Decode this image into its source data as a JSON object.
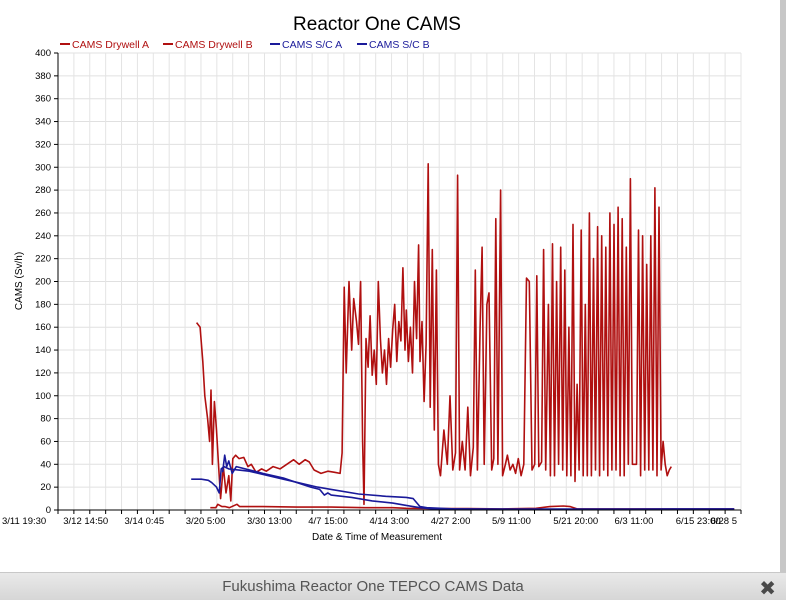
{
  "chart_data": {
    "type": "line",
    "title": "Reactor One CAMS",
    "xlabel": "Date & Time of Measurement",
    "ylabel": "CAMS (Sv/h)",
    "ylim": [
      0,
      400
    ],
    "xlim": [
      0,
      100
    ],
    "y_ticks": [
      0,
      20,
      40,
      60,
      80,
      100,
      120,
      140,
      160,
      180,
      200,
      220,
      240,
      260,
      280,
      300,
      320,
      340,
      360,
      380,
      400
    ],
    "x_tick_labels": [
      "3/11 19:30",
      "3/12 14:50",
      "3/14 0:45",
      "3/20 5:00",
      "3/30 13:00",
      "4/7 15:00",
      "4/14 3:00",
      "4/27 2:00",
      "5/9 11:00",
      "5/21 20:00",
      "6/3 11:00",
      "6/15 23:00",
      "6/28 5"
    ],
    "grid": true,
    "legend_position": "top",
    "series": [
      {
        "name": "CAMS Drywell A",
        "color": "#b01010",
        "points": [
          [
            22.3,
            2
          ],
          [
            23.1,
            2
          ],
          [
            23.4,
            5
          ],
          [
            24.0,
            3
          ],
          [
            24.5,
            3
          ],
          [
            25.1,
            2
          ],
          [
            26.2,
            5
          ],
          [
            26.6,
            3
          ],
          [
            30,
            3
          ],
          [
            35,
            2.5
          ],
          [
            40,
            2.5
          ],
          [
            45,
            2
          ],
          [
            49,
            2
          ],
          [
            51,
            1.5
          ],
          [
            55,
            1.2
          ],
          [
            60,
            1.2
          ],
          [
            65,
            1
          ],
          [
            70,
            1.5
          ],
          [
            72,
            3
          ],
          [
            74,
            3.5
          ],
          [
            75,
            3
          ],
          [
            76,
            1
          ],
          [
            80,
            1
          ],
          [
            90,
            1
          ],
          [
            99,
            1
          ]
        ]
      },
      {
        "name": "CAMS Drywell B",
        "color": "#b01010",
        "points": [
          [
            20.3,
            164
          ],
          [
            20.8,
            160
          ],
          [
            21.2,
            130
          ],
          [
            21.5,
            100
          ],
          [
            21.9,
            80
          ],
          [
            22.2,
            60
          ],
          [
            22.4,
            105
          ],
          [
            22.6,
            40
          ],
          [
            22.9,
            95
          ],
          [
            23.2,
            70
          ],
          [
            23.5,
            40
          ],
          [
            23.8,
            10
          ],
          [
            24.2,
            38
          ],
          [
            24.6,
            15
          ],
          [
            25.0,
            30
          ],
          [
            25.3,
            8
          ],
          [
            25.6,
            45
          ],
          [
            26.0,
            48
          ],
          [
            26.5,
            45
          ],
          [
            27.2,
            46
          ],
          [
            27.8,
            38
          ],
          [
            28.3,
            40
          ],
          [
            29.0,
            33
          ],
          [
            29.8,
            36
          ],
          [
            30.5,
            34
          ],
          [
            31.5,
            38
          ],
          [
            32.5,
            36
          ],
          [
            33.5,
            40
          ],
          [
            34.5,
            44
          ],
          [
            35.3,
            40
          ],
          [
            36.2,
            44
          ],
          [
            36.8,
            42
          ],
          [
            37.5,
            35
          ],
          [
            38.5,
            32
          ],
          [
            39.5,
            34
          ],
          [
            40.5,
            33
          ],
          [
            41.3,
            32
          ],
          [
            41.6,
            50
          ],
          [
            41.9,
            195
          ],
          [
            42.2,
            120
          ],
          [
            42.6,
            200
          ],
          [
            43.0,
            140
          ],
          [
            43.3,
            185
          ],
          [
            43.7,
            165
          ],
          [
            44.0,
            145
          ],
          [
            44.3,
            200
          ],
          [
            44.6,
            60
          ],
          [
            44.8,
            5
          ],
          [
            45.1,
            150
          ],
          [
            45.4,
            125
          ],
          [
            45.7,
            170
          ],
          [
            46.0,
            118
          ],
          [
            46.3,
            140
          ],
          [
            46.6,
            110
          ],
          [
            46.9,
            200
          ],
          [
            47.2,
            150
          ],
          [
            47.5,
            120
          ],
          [
            47.8,
            140
          ],
          [
            48.1,
            110
          ],
          [
            48.4,
            150
          ],
          [
            48.7,
            125
          ],
          [
            49.0,
            158
          ],
          [
            49.3,
            180
          ],
          [
            49.6,
            130
          ],
          [
            49.9,
            165
          ],
          [
            50.2,
            148
          ],
          [
            50.5,
            212
          ],
          [
            50.8,
            140
          ],
          [
            51.0,
            175
          ],
          [
            51.3,
            130
          ],
          [
            51.6,
            160
          ],
          [
            51.9,
            120
          ],
          [
            52.2,
            200
          ],
          [
            52.5,
            150
          ],
          [
            52.8,
            232
          ],
          [
            53.0,
            130
          ],
          [
            53.3,
            165
          ],
          [
            53.6,
            95
          ],
          [
            53.9,
            145
          ],
          [
            54.2,
            303
          ],
          [
            54.5,
            90
          ],
          [
            54.8,
            228
          ],
          [
            55.1,
            70
          ],
          [
            55.4,
            210
          ],
          [
            55.7,
            40
          ],
          [
            56.0,
            30
          ],
          [
            56.5,
            70
          ],
          [
            57.0,
            40
          ],
          [
            57.4,
            100
          ],
          [
            57.8,
            35
          ],
          [
            58.2,
            50
          ],
          [
            58.5,
            293
          ],
          [
            58.8,
            35
          ],
          [
            59.2,
            60
          ],
          [
            59.6,
            35
          ],
          [
            60.0,
            90
          ],
          [
            60.4,
            30
          ],
          [
            60.8,
            55
          ],
          [
            61.1,
            210
          ],
          [
            61.4,
            35
          ],
          [
            61.8,
            160
          ],
          [
            62.1,
            230
          ],
          [
            62.4,
            40
          ],
          [
            62.8,
            180
          ],
          [
            63.1,
            190
          ],
          [
            63.5,
            35
          ],
          [
            63.8,
            45
          ],
          [
            64.1,
            255
          ],
          [
            64.4,
            40
          ],
          [
            64.8,
            280
          ],
          [
            65.1,
            30
          ],
          [
            65.5,
            40
          ],
          [
            65.8,
            48
          ],
          [
            66.2,
            35
          ],
          [
            66.6,
            40
          ],
          [
            67.0,
            32
          ],
          [
            67.4,
            45
          ],
          [
            67.8,
            30
          ],
          [
            68.2,
            40
          ],
          [
            68.6,
            203
          ],
          [
            69.0,
            200
          ],
          [
            69.4,
            35
          ],
          [
            69.8,
            40
          ],
          [
            70.1,
            205
          ],
          [
            70.4,
            38
          ],
          [
            70.8,
            42
          ],
          [
            71.1,
            228
          ],
          [
            71.4,
            35
          ],
          [
            71.8,
            180
          ],
          [
            72.1,
            30
          ],
          [
            72.4,
            233
          ],
          [
            72.7,
            30
          ],
          [
            73.0,
            200
          ],
          [
            73.3,
            40
          ],
          [
            73.6,
            230
          ],
          [
            73.9,
            35
          ],
          [
            74.2,
            210
          ],
          [
            74.5,
            30
          ],
          [
            74.8,
            160
          ],
          [
            75.1,
            30
          ],
          [
            75.4,
            250
          ],
          [
            75.7,
            25
          ],
          [
            76.0,
            110
          ],
          [
            76.3,
            35
          ],
          [
            76.6,
            245
          ],
          [
            76.9,
            30
          ],
          [
            77.2,
            180
          ],
          [
            77.5,
            30
          ],
          [
            77.8,
            260
          ],
          [
            78.1,
            30
          ],
          [
            78.4,
            220
          ],
          [
            78.7,
            35
          ],
          [
            79.0,
            248
          ],
          [
            79.3,
            30
          ],
          [
            79.6,
            240
          ],
          [
            79.9,
            35
          ],
          [
            80.2,
            230
          ],
          [
            80.5,
            30
          ],
          [
            80.8,
            260
          ],
          [
            81.1,
            35
          ],
          [
            81.4,
            250
          ],
          [
            81.7,
            35
          ],
          [
            82.0,
            265
          ],
          [
            82.3,
            30
          ],
          [
            82.6,
            255
          ],
          [
            82.9,
            30
          ],
          [
            83.2,
            230
          ],
          [
            83.5,
            40
          ],
          [
            83.8,
            290
          ],
          [
            84.1,
            40
          ],
          [
            84.4,
            40
          ],
          [
            84.7,
            40
          ],
          [
            85.0,
            245
          ],
          [
            85.3,
            30
          ],
          [
            85.6,
            240
          ],
          [
            85.9,
            35
          ],
          [
            86.2,
            215
          ],
          [
            86.5,
            35
          ],
          [
            86.8,
            240
          ],
          [
            87.1,
            35
          ],
          [
            87.4,
            282
          ],
          [
            87.7,
            30
          ],
          [
            88.0,
            265
          ],
          [
            88.3,
            35
          ],
          [
            88.6,
            60
          ],
          [
            88.9,
            40
          ],
          [
            89.2,
            30
          ],
          [
            89.5,
            35
          ],
          [
            89.8,
            38
          ]
        ]
      },
      {
        "name": "CAMS S/C A",
        "color": "#1a1a9a",
        "points": [
          [
            24.1,
            33
          ],
          [
            24.4,
            48
          ],
          [
            24.7,
            38
          ],
          [
            25.0,
            43
          ],
          [
            25.5,
            32
          ],
          [
            26.1,
            38
          ],
          [
            30,
            32
          ],
          [
            33,
            28
          ],
          [
            35,
            24
          ],
          [
            37,
            20
          ],
          [
            38.3,
            18
          ],
          [
            38.6,
            16
          ],
          [
            39.0,
            13
          ],
          [
            39.5,
            15
          ],
          [
            40,
            13
          ],
          [
            43,
            11
          ],
          [
            46,
            8
          ],
          [
            49,
            6
          ],
          [
            51,
            4
          ],
          [
            53,
            2
          ],
          [
            55,
            1
          ],
          [
            60,
            1
          ],
          [
            70,
            0.8
          ],
          [
            80,
            0.8
          ],
          [
            90,
            1
          ],
          [
            99,
            1
          ]
        ]
      },
      {
        "name": "CAMS S/C B",
        "color": "#1a1a9a",
        "points": [
          [
            19.5,
            27
          ],
          [
            21.0,
            27
          ],
          [
            22.0,
            26
          ],
          [
            22.5,
            24
          ],
          [
            23.2,
            20
          ],
          [
            23.6,
            15
          ],
          [
            23.9,
            36
          ],
          [
            24.3,
            38
          ],
          [
            25,
            36
          ],
          [
            28,
            34
          ],
          [
            33,
            27
          ],
          [
            38,
            20
          ],
          [
            40,
            18
          ],
          [
            44,
            14
          ],
          [
            48,
            12
          ],
          [
            51,
            11
          ],
          [
            52,
            10
          ],
          [
            53,
            3
          ],
          [
            54,
            2
          ],
          [
            58,
            1
          ],
          [
            62,
            0.5
          ],
          [
            70,
            0.5
          ],
          [
            80,
            0.5
          ],
          [
            90,
            0.5
          ],
          [
            99,
            0.5
          ]
        ]
      }
    ]
  },
  "footer": {
    "caption": "Fukushima Reactor One TEPCO CAMS Data",
    "close_icon": "close-icon"
  }
}
